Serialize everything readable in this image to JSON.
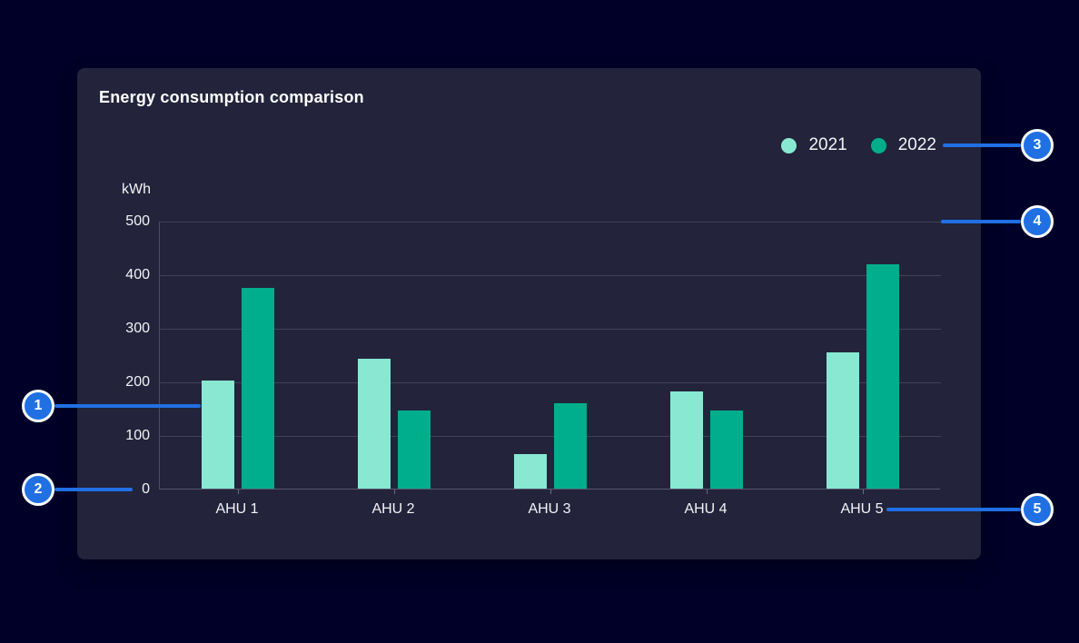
{
  "card": {
    "title": "Energy consumption comparison"
  },
  "legend": {
    "items": [
      {
        "label": "2021",
        "color": "#88e8d2"
      },
      {
        "label": "2022",
        "color": "#00ae8e"
      }
    ]
  },
  "axis": {
    "unit_label": "kWh",
    "y_ticks": [
      "500",
      "400",
      "300",
      "200",
      "100",
      "0"
    ],
    "x_labels": [
      "AHU 1",
      "AHU 2",
      "AHU 3",
      "AHU 4",
      "AHU 5"
    ]
  },
  "callouts": [
    {
      "number": "1"
    },
    {
      "number": "2"
    },
    {
      "number": "3"
    },
    {
      "number": "4"
    },
    {
      "number": "5"
    }
  ],
  "colors": {
    "page_background": "#000028",
    "card_background": "#23233c",
    "accent_blue": "#2070e4",
    "series_2021": "#88e8d2",
    "series_2022": "#00ae8e",
    "gridline": "#41415c",
    "text": "#f4f4f6"
  },
  "chart_data": {
    "type": "bar",
    "title": "Energy consumption comparison",
    "categories": [
      "AHU 1",
      "AHU 2",
      "AHU 3",
      "AHU 4",
      "AHU 5"
    ],
    "series": [
      {
        "name": "2021",
        "color": "#88e8d2",
        "values": [
          202,
          243,
          64,
          181,
          255
        ]
      },
      {
        "name": "2022",
        "color": "#00ae8e",
        "values": [
          375,
          146,
          160,
          146,
          418
        ]
      }
    ],
    "xlabel": "",
    "ylabel": "kWh",
    "ylim": [
      0,
      500
    ],
    "ytick_step": 100,
    "grid": true,
    "legend_position": "top-right"
  }
}
